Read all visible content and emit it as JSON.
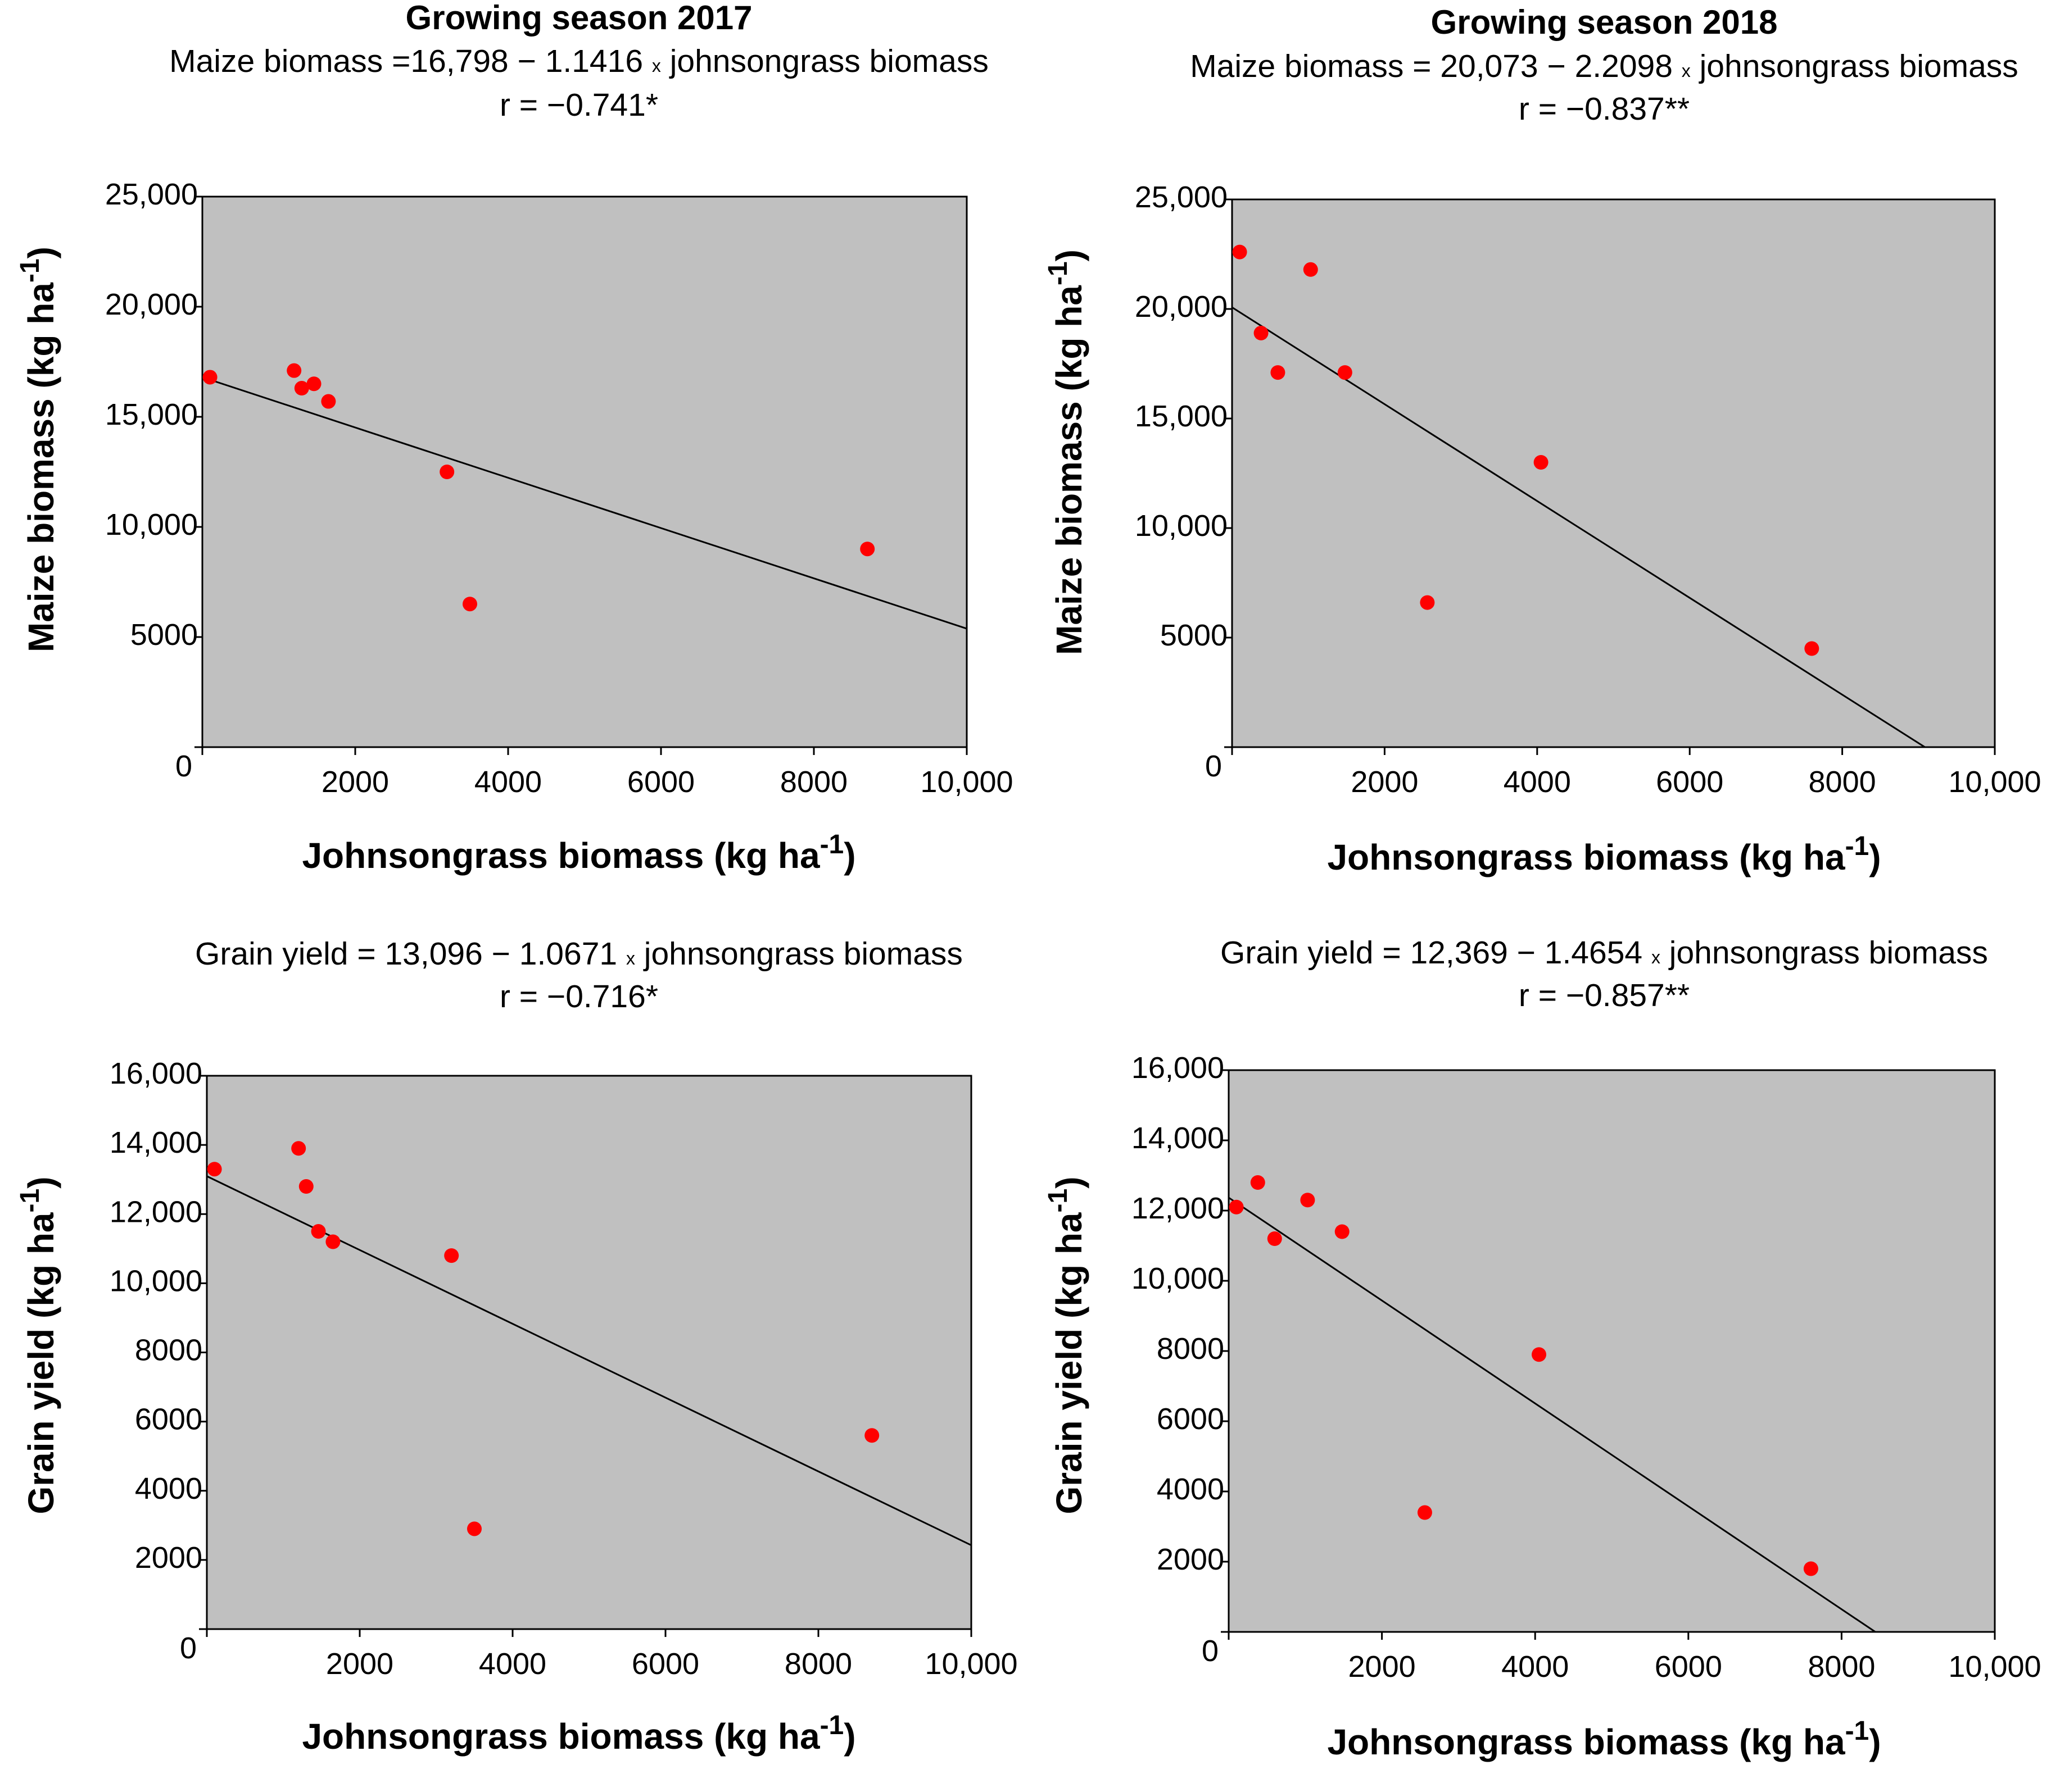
{
  "colors": {
    "plot_bg": "#c0c0c0",
    "point": "#ff0000",
    "line": "#000000"
  },
  "chart_data": [
    {
      "type": "scatter",
      "panel": "top-left",
      "season": "Growing season 2017",
      "equation": {
        "lhs": "Maize biomass =16,798",
        "minus": "−",
        "rest": "1.1416",
        "times": "x",
        "var": "johnsongrass biomass"
      },
      "r_text": "r = −0.741*",
      "xlabel_main": "Johnsongrass biomass (kg ha",
      "xlabel_sup": "-1",
      "xlabel_end": ")",
      "ylabel_main": "Maize biomass (kg ha",
      "ylabel_sup": "-1",
      "ylabel_end": ")",
      "xlim": [
        0,
        10000
      ],
      "ylim": [
        0,
        25000
      ],
      "xticks": [
        {
          "value": 0,
          "label": "0"
        },
        {
          "value": 2000,
          "label": "2000"
        },
        {
          "value": 4000,
          "label": "4000"
        },
        {
          "value": 6000,
          "label": "6000"
        },
        {
          "value": 8000,
          "label": "8000"
        },
        {
          "value": 10000,
          "label": "10,000"
        }
      ],
      "yticks": [
        {
          "value": 0,
          "label": ""
        },
        {
          "value": 5000,
          "label": "5000"
        },
        {
          "value": 10000,
          "label": "10,000"
        },
        {
          "value": 15000,
          "label": "15,000"
        },
        {
          "value": 20000,
          "label": "20,000"
        },
        {
          "value": 25000,
          "label": "25,000"
        }
      ],
      "points": [
        [
          100,
          16800
        ],
        [
          1200,
          17100
        ],
        [
          1300,
          16300
        ],
        [
          1460,
          16500
        ],
        [
          1650,
          15700
        ],
        [
          3200,
          12500
        ],
        [
          3500,
          6500
        ],
        [
          8700,
          9000
        ]
      ],
      "regression": {
        "intercept": 16798,
        "slope": -1.1416
      }
    },
    {
      "type": "scatter",
      "panel": "top-right",
      "season": "Growing season 2018",
      "equation": {
        "lhs": "Maize biomass = 20,073",
        "minus": "−",
        "rest": "2.2098",
        "times": "x",
        "var": "johnsongrass biomass"
      },
      "r_text": "r = −0.837**",
      "xlabel_main": "Johnsongrass biomass (kg ha",
      "xlabel_sup": "-1",
      "xlabel_end": ")",
      "ylabel_main": "Maize biomass (kg ha",
      "ylabel_sup": "-1",
      "ylabel_end": ")",
      "xlim": [
        0,
        10000
      ],
      "ylim": [
        0,
        25000
      ],
      "xticks": [
        {
          "value": 0,
          "label": "0"
        },
        {
          "value": 2000,
          "label": "2000"
        },
        {
          "value": 4000,
          "label": "4000"
        },
        {
          "value": 6000,
          "label": "6000"
        },
        {
          "value": 8000,
          "label": "8000"
        },
        {
          "value": 10000,
          "label": "10,000"
        }
      ],
      "yticks": [
        {
          "value": 0,
          "label": ""
        },
        {
          "value": 5000,
          "label": "5000"
        },
        {
          "value": 10000,
          "label": "10,000"
        },
        {
          "value": 15000,
          "label": "15,000"
        },
        {
          "value": 20000,
          "label": "20,000"
        },
        {
          "value": 25000,
          "label": "25,000"
        }
      ],
      "points": [
        [
          100,
          22600
        ],
        [
          380,
          18900
        ],
        [
          600,
          17100
        ],
        [
          1030,
          21800
        ],
        [
          1480,
          17100
        ],
        [
          2560,
          6600
        ],
        [
          4050,
          13000
        ],
        [
          7600,
          4500
        ]
      ],
      "regression": {
        "intercept": 20073,
        "slope": -2.2098
      }
    },
    {
      "type": "scatter",
      "panel": "bottom-left",
      "season": "",
      "equation": {
        "lhs": "Grain yield = 13,096",
        "minus": "−",
        "rest": "1.0671",
        "times": "x",
        "var": "johnsongrass biomass"
      },
      "r_text": "r = −0.716*",
      "xlabel_main": "Johnsongrass biomass (kg ha",
      "xlabel_sup": "-1",
      "xlabel_end": ")",
      "ylabel_main": "Grain yield (kg ha",
      "ylabel_sup": "-1",
      "ylabel_end": ")",
      "xlim": [
        0,
        10000
      ],
      "ylim": [
        0,
        16000
      ],
      "xticks": [
        {
          "value": 0,
          "label": "0"
        },
        {
          "value": 2000,
          "label": "2000"
        },
        {
          "value": 4000,
          "label": "4000"
        },
        {
          "value": 6000,
          "label": "6000"
        },
        {
          "value": 8000,
          "label": "8000"
        },
        {
          "value": 10000,
          "label": "10,000"
        }
      ],
      "yticks": [
        {
          "value": 0,
          "label": ""
        },
        {
          "value": 2000,
          "label": "2000"
        },
        {
          "value": 4000,
          "label": "4000"
        },
        {
          "value": 6000,
          "label": "6000"
        },
        {
          "value": 8000,
          "label": "8000"
        },
        {
          "value": 10000,
          "label": "10,000"
        },
        {
          "value": 12000,
          "label": "12,000"
        },
        {
          "value": 14000,
          "label": "14,000"
        },
        {
          "value": 16000,
          "label": "16,000"
        }
      ],
      "points": [
        [
          100,
          13300
        ],
        [
          1200,
          13900
        ],
        [
          1300,
          12800
        ],
        [
          1460,
          11500
        ],
        [
          1650,
          11200
        ],
        [
          3200,
          10800
        ],
        [
          3500,
          2900
        ],
        [
          8700,
          5600
        ]
      ],
      "regression": {
        "intercept": 13096,
        "slope": -1.0671
      }
    },
    {
      "type": "scatter",
      "panel": "bottom-right",
      "season": "",
      "equation": {
        "lhs": "Grain yield = 12,369",
        "minus": "−",
        "rest": "1.4654",
        "times": "x",
        "var": "johnsongrass biomass"
      },
      "r_text": "r = −0.857**",
      "xlabel_main": "Johnsongrass biomass (kg ha",
      "xlabel_sup": "-1",
      "xlabel_end": ")",
      "ylabel_main": "Grain yield (kg ha",
      "ylabel_sup": "-1",
      "ylabel_end": ")",
      "xlim": [
        0,
        10000
      ],
      "ylim": [
        0,
        16000
      ],
      "xticks": [
        {
          "value": 0,
          "label": "0"
        },
        {
          "value": 2000,
          "label": "2000"
        },
        {
          "value": 4000,
          "label": "4000"
        },
        {
          "value": 6000,
          "label": "6000"
        },
        {
          "value": 8000,
          "label": "8000"
        },
        {
          "value": 10000,
          "label": "10,000"
        }
      ],
      "yticks": [
        {
          "value": 0,
          "label": ""
        },
        {
          "value": 2000,
          "label": "2000"
        },
        {
          "value": 4000,
          "label": "4000"
        },
        {
          "value": 6000,
          "label": "6000"
        },
        {
          "value": 8000,
          "label": "8000"
        },
        {
          "value": 10000,
          "label": "10,000"
        },
        {
          "value": 12000,
          "label": "12,000"
        },
        {
          "value": 14000,
          "label": "14,000"
        },
        {
          "value": 16000,
          "label": "16,000"
        }
      ],
      "points": [
        [
          100,
          12100
        ],
        [
          380,
          12800
        ],
        [
          600,
          11200
        ],
        [
          1030,
          12300
        ],
        [
          1480,
          11400
        ],
        [
          2560,
          3400
        ],
        [
          4050,
          7900
        ],
        [
          7600,
          1800
        ]
      ],
      "regression": {
        "intercept": 12369,
        "slope": -1.4654
      }
    }
  ]
}
